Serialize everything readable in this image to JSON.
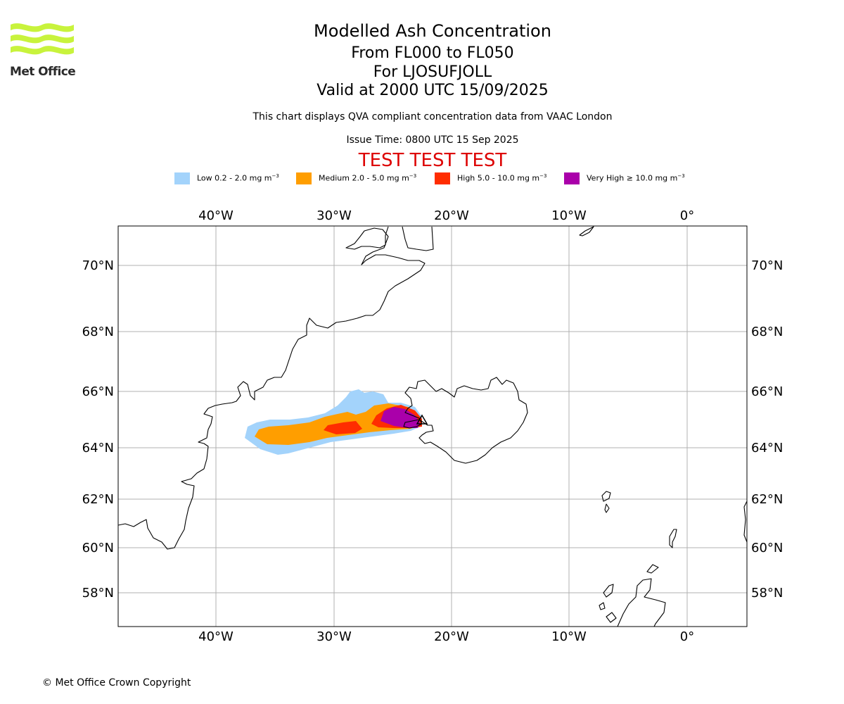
{
  "logo": {
    "text": "Met Office",
    "wave_color": "#c8f33c"
  },
  "header": {
    "title": "Modelled Ash Concentration",
    "level_range": "From FL000 to FL050",
    "volcano": "For LJOSUFJOLL",
    "valid_time": "Valid at 2000 UTC 15/09/2025",
    "description": "This chart displays QVA compliant concentration data from VAAC London",
    "issue_time": "Issue Time: 0800 UTC 15 Sep 2025",
    "test_banner": "TEST TEST TEST"
  },
  "legend": [
    {
      "label": "Low 0.2 - 2.0 mg m",
      "unit_exp": "−3",
      "color": "#a3d3fb"
    },
    {
      "label": "Medium 2.0 - 5.0 mg m",
      "unit_exp": "−3",
      "color": "#ff9e00"
    },
    {
      "label": "High 5.0 - 10.0 mg m",
      "unit_exp": "−3",
      "color": "#ff2d00"
    },
    {
      "label": "Very High  ≥  10.0 mg m",
      "unit_exp": "−3",
      "color": "#aa00aa"
    }
  ],
  "map": {
    "lon_ticks": [
      "40°W",
      "30°W",
      "20°W",
      "10°W",
      "0°"
    ],
    "lat_ticks": [
      "70°N",
      "68°N",
      "66°N",
      "64°N",
      "62°N",
      "60°N",
      "58°N"
    ],
    "volcano_marker": "triangle-icon",
    "coastline_color": "#000000",
    "grid_color": "#b0b0b0"
  },
  "footer": {
    "copyright": "© Met Office Crown Copyright"
  }
}
